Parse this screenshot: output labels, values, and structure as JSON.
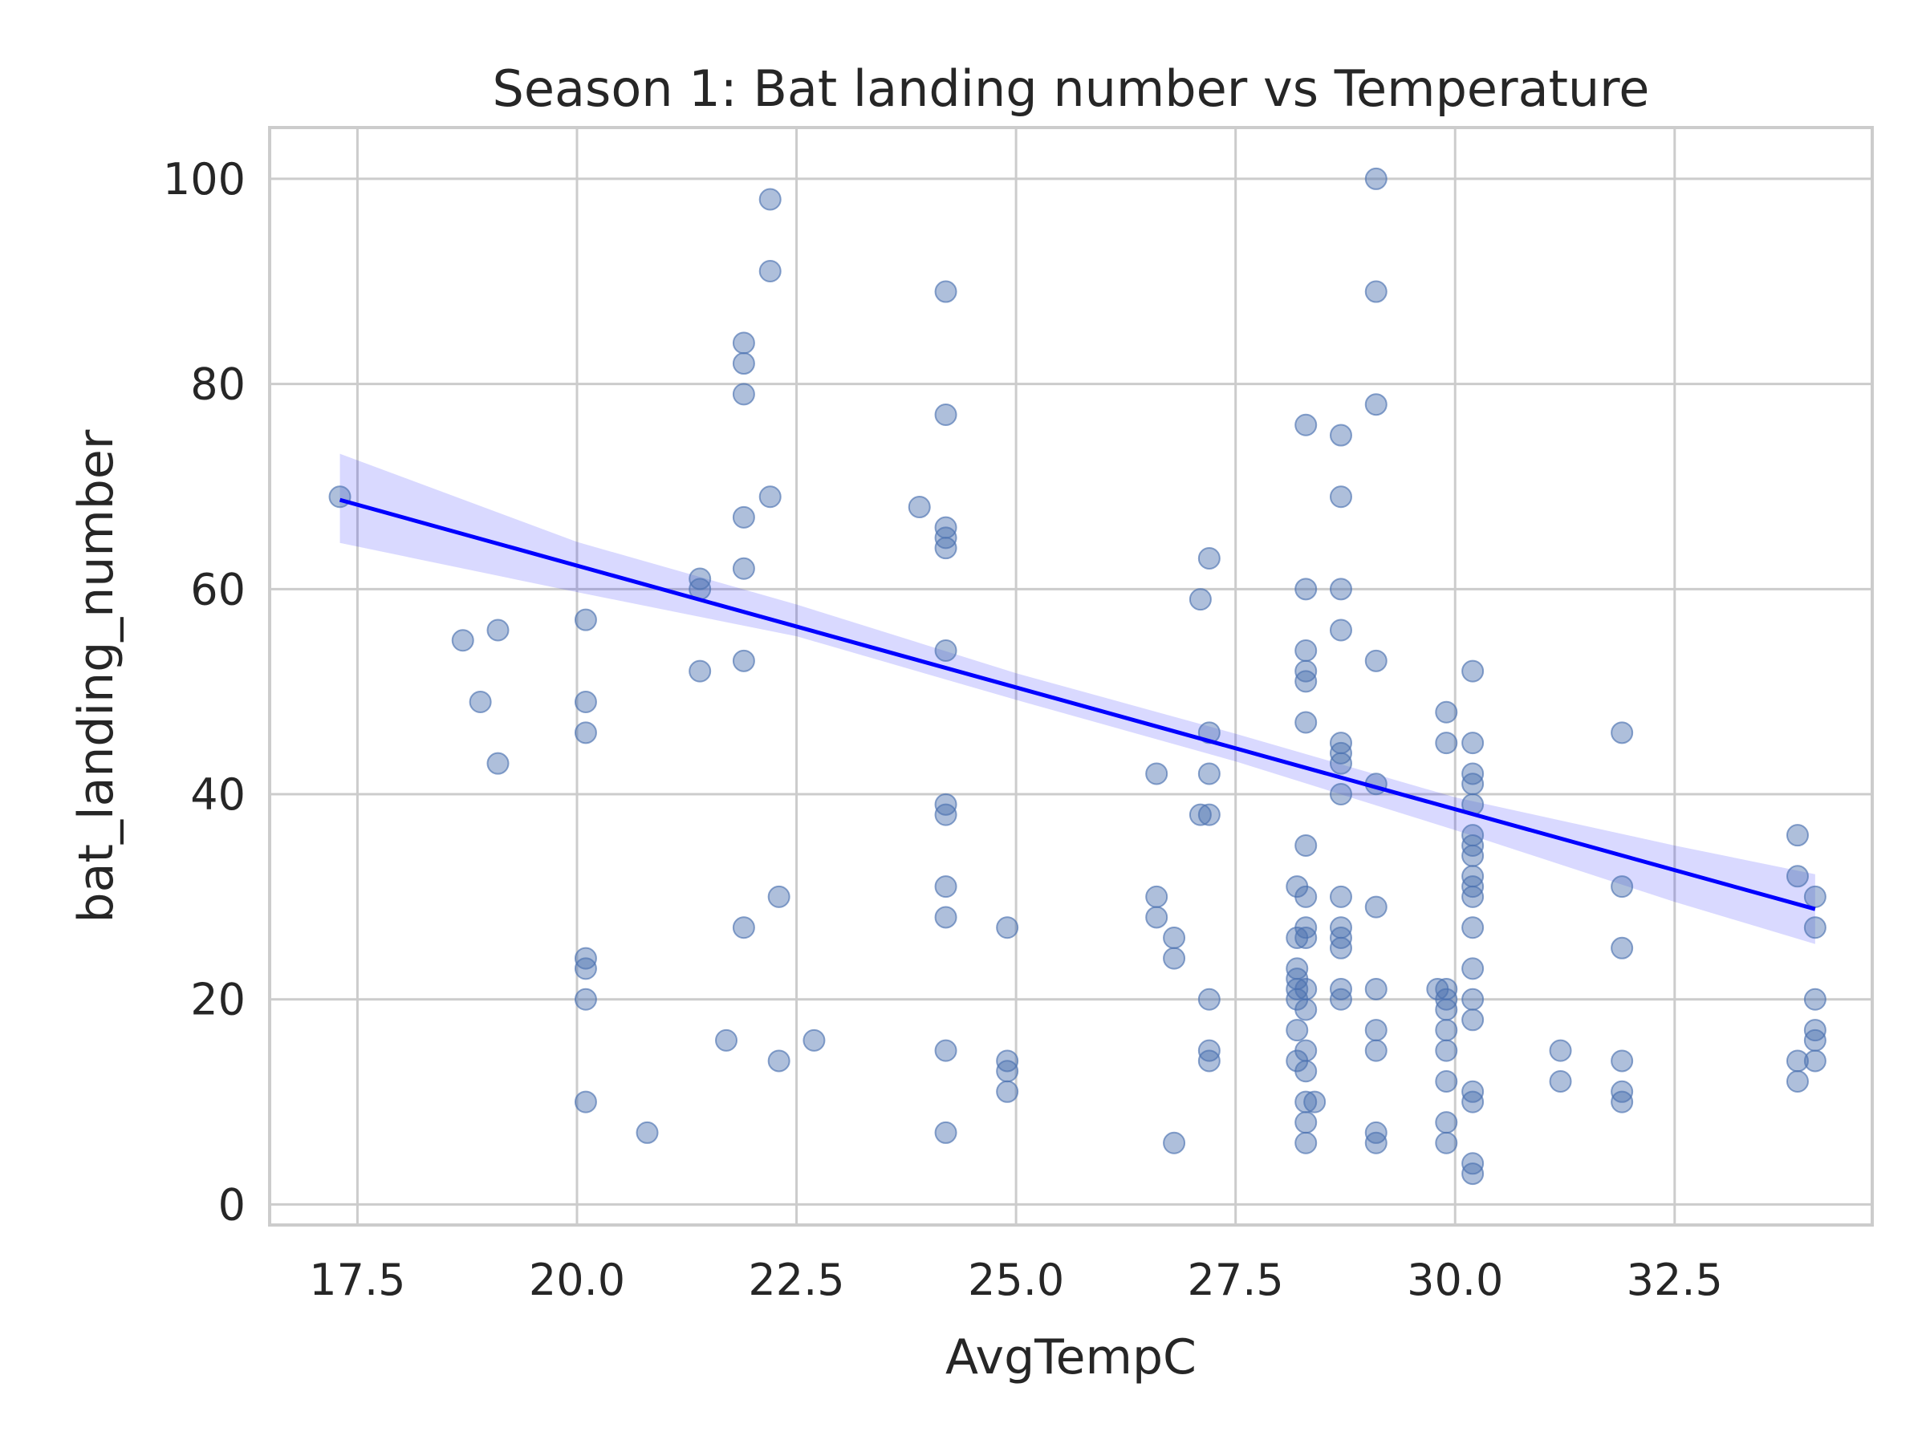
{
  "colors": {
    "point": "#4c72b0",
    "regression_line": "#0000ff",
    "confidence_band": "#0000ff",
    "grid": "#cccccc",
    "frame": "#cccccc",
    "text": "#262626"
  },
  "chart_data": {
    "type": "scatter",
    "title": "Season 1: Bat landing number vs Temperature",
    "xlabel": "AvgTempC",
    "ylabel": "bat_landing_number",
    "xlim": [
      16.5,
      34.75
    ],
    "ylim": [
      -2,
      105
    ],
    "xticks": [
      17.5,
      20.0,
      22.5,
      25.0,
      27.5,
      30.0,
      32.5
    ],
    "xtick_labels": [
      "17.5",
      "20.0",
      "22.5",
      "25.0",
      "27.5",
      "30.0",
      "32.5"
    ],
    "yticks": [
      0,
      20,
      40,
      60,
      80,
      100
    ],
    "ytick_labels": [
      "0",
      "20",
      "40",
      "60",
      "80",
      "100"
    ],
    "grid": true,
    "legend": "none",
    "point_alpha": 0.45,
    "points": [
      [
        17.3,
        69
      ],
      [
        18.7,
        55
      ],
      [
        18.9,
        49
      ],
      [
        19.1,
        56
      ],
      [
        19.1,
        43
      ],
      [
        20.1,
        57
      ],
      [
        20.1,
        49
      ],
      [
        20.1,
        46
      ],
      [
        20.1,
        24
      ],
      [
        20.1,
        23
      ],
      [
        20.1,
        20
      ],
      [
        20.1,
        10
      ],
      [
        20.8,
        7
      ],
      [
        21.4,
        61
      ],
      [
        21.4,
        60
      ],
      [
        21.4,
        52
      ],
      [
        21.7,
        16
      ],
      [
        21.9,
        84
      ],
      [
        21.9,
        82
      ],
      [
        21.9,
        79
      ],
      [
        21.9,
        67
      ],
      [
        21.9,
        62
      ],
      [
        21.9,
        53
      ],
      [
        21.9,
        27
      ],
      [
        22.2,
        98
      ],
      [
        22.2,
        91
      ],
      [
        22.2,
        69
      ],
      [
        22.3,
        30
      ],
      [
        22.3,
        14
      ],
      [
        22.7,
        16
      ],
      [
        23.9,
        68
      ],
      [
        24.2,
        89
      ],
      [
        24.2,
        77
      ],
      [
        24.2,
        66
      ],
      [
        24.2,
        65
      ],
      [
        24.2,
        64
      ],
      [
        24.2,
        54
      ],
      [
        24.2,
        39
      ],
      [
        24.2,
        38
      ],
      [
        24.2,
        31
      ],
      [
        24.2,
        28
      ],
      [
        24.2,
        15
      ],
      [
        24.2,
        7
      ],
      [
        24.9,
        27
      ],
      [
        24.9,
        14
      ],
      [
        24.9,
        13
      ],
      [
        24.9,
        11
      ],
      [
        26.6,
        42
      ],
      [
        26.6,
        30
      ],
      [
        26.6,
        28
      ],
      [
        26.8,
        26
      ],
      [
        26.8,
        24
      ],
      [
        26.8,
        6
      ],
      [
        27.1,
        59
      ],
      [
        27.1,
        38
      ],
      [
        27.2,
        63
      ],
      [
        27.2,
        46
      ],
      [
        27.2,
        42
      ],
      [
        27.2,
        38
      ],
      [
        27.2,
        20
      ],
      [
        27.2,
        15
      ],
      [
        27.2,
        14
      ],
      [
        28.2,
        31
      ],
      [
        28.2,
        26
      ],
      [
        28.2,
        23
      ],
      [
        28.2,
        22
      ],
      [
        28.2,
        21
      ],
      [
        28.2,
        20
      ],
      [
        28.2,
        17
      ],
      [
        28.2,
        14
      ],
      [
        28.3,
        76
      ],
      [
        28.3,
        60
      ],
      [
        28.3,
        54
      ],
      [
        28.3,
        52
      ],
      [
        28.3,
        51
      ],
      [
        28.3,
        47
      ],
      [
        28.3,
        35
      ],
      [
        28.3,
        30
      ],
      [
        28.3,
        27
      ],
      [
        28.3,
        26
      ],
      [
        28.3,
        21
      ],
      [
        28.3,
        19
      ],
      [
        28.3,
        15
      ],
      [
        28.3,
        13
      ],
      [
        28.3,
        10
      ],
      [
        28.3,
        8
      ],
      [
        28.3,
        6
      ],
      [
        28.4,
        10
      ],
      [
        28.7,
        75
      ],
      [
        28.7,
        69
      ],
      [
        28.7,
        60
      ],
      [
        28.7,
        56
      ],
      [
        28.7,
        45
      ],
      [
        28.7,
        44
      ],
      [
        28.7,
        43
      ],
      [
        28.7,
        40
      ],
      [
        28.7,
        30
      ],
      [
        28.7,
        27
      ],
      [
        28.7,
        26
      ],
      [
        28.7,
        25
      ],
      [
        28.7,
        21
      ],
      [
        28.7,
        20
      ],
      [
        29.1,
        100
      ],
      [
        29.1,
        89
      ],
      [
        29.1,
        78
      ],
      [
        29.1,
        53
      ],
      [
        29.1,
        41
      ],
      [
        29.1,
        29
      ],
      [
        29.1,
        21
      ],
      [
        29.1,
        17
      ],
      [
        29.1,
        15
      ],
      [
        29.1,
        7
      ],
      [
        29.1,
        6
      ],
      [
        29.8,
        21
      ],
      [
        29.9,
        48
      ],
      [
        29.9,
        45
      ],
      [
        29.9,
        21
      ],
      [
        29.9,
        20
      ],
      [
        29.9,
        19
      ],
      [
        29.9,
        17
      ],
      [
        29.9,
        15
      ],
      [
        29.9,
        12
      ],
      [
        29.9,
        8
      ],
      [
        29.9,
        6
      ],
      [
        30.2,
        52
      ],
      [
        30.2,
        45
      ],
      [
        30.2,
        42
      ],
      [
        30.2,
        41
      ],
      [
        30.2,
        39
      ],
      [
        30.2,
        36
      ],
      [
        30.2,
        35
      ],
      [
        30.2,
        34
      ],
      [
        30.2,
        32
      ],
      [
        30.2,
        31
      ],
      [
        30.2,
        30
      ],
      [
        30.2,
        27
      ],
      [
        30.2,
        23
      ],
      [
        30.2,
        20
      ],
      [
        30.2,
        18
      ],
      [
        30.2,
        11
      ],
      [
        30.2,
        10
      ],
      [
        30.2,
        4
      ],
      [
        30.2,
        3
      ],
      [
        31.2,
        15
      ],
      [
        31.2,
        12
      ],
      [
        31.9,
        46
      ],
      [
        31.9,
        31
      ],
      [
        31.9,
        25
      ],
      [
        31.9,
        14
      ],
      [
        31.9,
        11
      ],
      [
        31.9,
        10
      ],
      [
        33.9,
        36
      ],
      [
        33.9,
        32
      ],
      [
        33.9,
        14
      ],
      [
        33.9,
        12
      ],
      [
        34.1,
        30
      ],
      [
        34.1,
        27
      ],
      [
        34.1,
        20
      ],
      [
        34.1,
        17
      ],
      [
        34.1,
        16
      ],
      [
        34.1,
        14
      ]
    ],
    "regression": {
      "x_start": 17.3,
      "y_start": 68.7,
      "x_end": 34.1,
      "y_end": 28.8
    },
    "confidence_band": [
      [
        17.3,
        64.5,
        73.2
      ],
      [
        20.0,
        59.7,
        64.6
      ],
      [
        22.5,
        55.4,
        58.5
      ],
      [
        25.0,
        49.2,
        51.8
      ],
      [
        27.5,
        43.2,
        45.9
      ],
      [
        30.0,
        36.5,
        39.7
      ],
      [
        32.5,
        29.5,
        35.0
      ],
      [
        34.1,
        25.4,
        32.2
      ]
    ]
  }
}
